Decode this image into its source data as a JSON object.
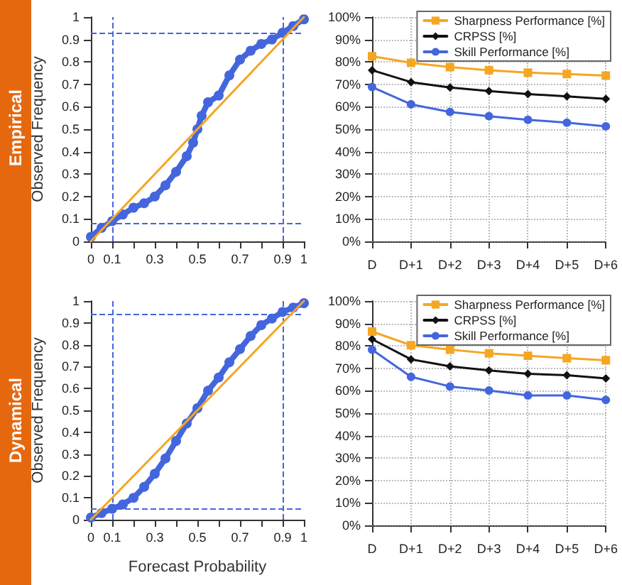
{
  "chart_data": [
    {
      "type": "line",
      "annotations": [
        "Empirical"
      ],
      "ylabel": "Observed Frequency",
      "xlim": [
        0,
        1
      ],
      "ylim": [
        0,
        1
      ],
      "xticks": [
        0,
        0.1,
        {
          "value": 0.2,
          "label": null
        },
        0.3,
        {
          "value": 0.4,
          "label": null
        },
        0.5,
        {
          "value": 0.6,
          "label": null
        },
        0.7,
        {
          "value": 0.8,
          "label": null
        },
        0.9,
        1
      ],
      "yticks": [
        0,
        0.1,
        0.2,
        0.3,
        0.4,
        0.5,
        0.6,
        0.7,
        0.8,
        0.9,
        1
      ],
      "grid": false,
      "legend": false,
      "series": [
        {
          "color": "#4466dd",
          "marker": "circle",
          "x": [
            0,
            0.05,
            0.1,
            0.15,
            0.2,
            0.25,
            0.3,
            0.35,
            0.4,
            0.45,
            0.48,
            0.5,
            0.52,
            0.55,
            0.6,
            0.65,
            0.7,
            0.75,
            0.8,
            0.85,
            0.9,
            0.95,
            1
          ],
          "values": [
            0.02,
            0.06,
            0.09,
            0.12,
            0.15,
            0.17,
            0.2,
            0.25,
            0.31,
            0.38,
            0.44,
            0.5,
            0.56,
            0.62,
            0.65,
            0.74,
            0.81,
            0.85,
            0.88,
            0.9,
            0.93,
            0.96,
            0.99
          ]
        },
        {
          "color": "#f5a623",
          "marker": "none",
          "x": [
            0,
            1
          ],
          "values": [
            0,
            1
          ]
        }
      ],
      "ref_lines": [
        {
          "axis": "x",
          "value": 0.1,
          "color": "#4466dd",
          "line_style": "dashed"
        },
        {
          "axis": "x",
          "value": 0.9,
          "color": "#4466dd",
          "line_style": "dashed"
        },
        {
          "axis": "y",
          "value": 0.08,
          "color": "#4466dd",
          "line_style": "dashed"
        },
        {
          "axis": "y",
          "value": 0.93,
          "color": "#4466dd",
          "line_style": "dashed"
        }
      ]
    },
    {
      "type": "line",
      "categories": [
        "D",
        "D+1",
        "D+2",
        "D+3",
        "D+4",
        "D+5",
        "D+6"
      ],
      "ylim": [
        0,
        100
      ],
      "yticks": [
        {
          "value": 0,
          "label": "0%"
        },
        {
          "value": 10,
          "label": "10%"
        },
        {
          "value": 20,
          "label": "20%"
        },
        {
          "value": 30,
          "label": "30%"
        },
        {
          "value": 40,
          "label": "40%"
        },
        {
          "value": 50,
          "label": "50%"
        },
        {
          "value": 60,
          "label": "60%"
        },
        {
          "value": 70,
          "label": "70%"
        },
        {
          "value": 80,
          "label": "80%"
        },
        {
          "value": 90,
          "label": "90%"
        },
        {
          "value": 100,
          "label": "100%"
        }
      ],
      "grid": true,
      "legend": "top right",
      "series": [
        {
          "name": "Sharpness Performance [%]",
          "color": "#f5a623",
          "marker": "square",
          "values": [
            82.5,
            79.6,
            77.7,
            76.3,
            75.2,
            74.6,
            73.9
          ]
        },
        {
          "name": "CRPSS [%]",
          "color": "#111111",
          "marker": "diamond",
          "values": [
            76.3,
            71.0,
            68.6,
            67.0,
            65.7,
            64.6,
            63.5
          ]
        },
        {
          "name": "Skill Performance [%]",
          "color": "#4466dd",
          "marker": "circle",
          "values": [
            68.8,
            61.1,
            57.7,
            55.8,
            54.2,
            52.9,
            51.3
          ]
        }
      ],
      "ref_lines": [
        {
          "axis": "y",
          "value": 0,
          "color": "#555555",
          "line_style": "dotted"
        }
      ]
    },
    {
      "type": "line",
      "annotations": [
        "Dynamical"
      ],
      "xlabel": "Forecast Probability",
      "ylabel": "Observed Frequency",
      "xlim": [
        0,
        1
      ],
      "ylim": [
        0,
        1
      ],
      "xticks": [
        0,
        0.1,
        {
          "value": 0.2,
          "label": null
        },
        0.3,
        {
          "value": 0.4,
          "label": null
        },
        0.5,
        {
          "value": 0.6,
          "label": null
        },
        0.7,
        {
          "value": 0.8,
          "label": null
        },
        0.9,
        1
      ],
      "yticks": [
        0,
        0.1,
        0.2,
        0.3,
        0.4,
        0.5,
        0.6,
        0.7,
        0.8,
        0.9,
        1
      ],
      "grid": false,
      "legend": false,
      "series": [
        {
          "color": "#4466dd",
          "marker": "circle",
          "x": [
            0,
            0.05,
            0.1,
            0.15,
            0.2,
            0.25,
            0.3,
            0.35,
            0.4,
            0.45,
            0.5,
            0.55,
            0.6,
            0.65,
            0.7,
            0.75,
            0.8,
            0.85,
            0.9,
            0.95,
            1
          ],
          "values": [
            0.01,
            0.03,
            0.05,
            0.07,
            0.1,
            0.15,
            0.21,
            0.28,
            0.36,
            0.44,
            0.51,
            0.59,
            0.65,
            0.72,
            0.78,
            0.84,
            0.89,
            0.92,
            0.95,
            0.97,
            0.99
          ]
        },
        {
          "color": "#f5a623",
          "marker": "none",
          "x": [
            0,
            1
          ],
          "values": [
            0,
            1
          ]
        }
      ],
      "ref_lines": [
        {
          "axis": "x",
          "value": 0.1,
          "color": "#4466dd",
          "line_style": "dashed"
        },
        {
          "axis": "x",
          "value": 0.9,
          "color": "#4466dd",
          "line_style": "dashed"
        },
        {
          "axis": "y",
          "value": 0.05,
          "color": "#4466dd",
          "line_style": "dashed"
        },
        {
          "axis": "y",
          "value": 0.94,
          "color": "#4466dd",
          "line_style": "dashed"
        }
      ]
    },
    {
      "type": "line",
      "categories": [
        "D",
        "D+1",
        "D+2",
        "D+3",
        "D+4",
        "D+5",
        "D+6"
      ],
      "ylim": [
        0,
        100
      ],
      "yticks": [
        {
          "value": 0,
          "label": "0%"
        },
        {
          "value": 10,
          "label": "10%"
        },
        {
          "value": 20,
          "label": "20%"
        },
        {
          "value": 30,
          "label": "30%"
        },
        {
          "value": 40,
          "label": "40%"
        },
        {
          "value": 50,
          "label": "50%"
        },
        {
          "value": 60,
          "label": "60%"
        },
        {
          "value": 70,
          "label": "70%"
        },
        {
          "value": 80,
          "label": "80%"
        },
        {
          "value": 90,
          "label": "90%"
        },
        {
          "value": 100,
          "label": "100%"
        }
      ],
      "grid": true,
      "legend": "top right",
      "series": [
        {
          "name": "Sharpness Performance [%]",
          "color": "#f5a623",
          "marker": "square",
          "values": [
            86.4,
            80.3,
            78.3,
            76.7,
            75.6,
            74.5,
            73.6
          ]
        },
        {
          "name": "CRPSS [%]",
          "color": "#111111",
          "marker": "diamond",
          "values": [
            83.0,
            74.0,
            70.9,
            69.1,
            67.6,
            66.9,
            65.5
          ]
        },
        {
          "name": "Skill Performance [%]",
          "color": "#4466dd",
          "marker": "circle",
          "values": [
            78.3,
            66.2,
            61.9,
            60.1,
            57.9,
            57.9,
            55.9
          ]
        }
      ],
      "ref_lines": [
        {
          "axis": "y",
          "value": 0,
          "color": "#555555",
          "line_style": "dotted"
        }
      ]
    }
  ]
}
